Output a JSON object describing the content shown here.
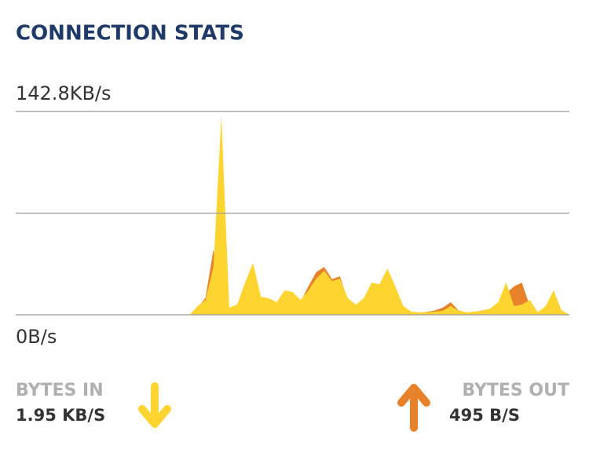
{
  "title": "CONNECTION STATS",
  "chart_data": {
    "type": "area",
    "ylim": [
      0,
      142.8
    ],
    "yticks": [
      {
        "value": 0,
        "label": "0B/s"
      },
      {
        "value": 71.4,
        "label": null
      },
      {
        "value": 142.8,
        "label": "142.8KB/s"
      }
    ],
    "grid": true,
    "series": [
      {
        "name": "BYTES IN",
        "color": "#fdd430",
        "values": [
          null,
          null,
          null,
          null,
          null,
          null,
          null,
          null,
          null,
          null,
          null,
          null,
          null,
          null,
          null,
          null,
          null,
          null,
          null,
          null,
          null,
          null,
          0,
          6.1,
          10.5,
          33.6,
          139.5,
          5.0,
          7.2,
          22.6,
          36.4,
          12.7,
          11.6,
          8.8,
          17.1,
          16.0,
          10.5,
          17.1,
          25.4,
          30.9,
          23.7,
          25.4,
          11.6,
          7.2,
          11.6,
          22.6,
          21.5,
          32.5,
          19.9,
          6.1,
          2.2,
          1.7,
          1.7,
          2.2,
          2.8,
          6.1,
          2.8,
          1.7,
          2.2,
          2.8,
          4.4,
          8.8,
          22.6,
          6.1,
          7.2,
          10.5,
          1.7,
          6.1,
          17.1,
          3.3,
          0
        ]
      },
      {
        "name": "BYTES OUT",
        "color": "#e8822a",
        "values": [
          null,
          null,
          null,
          null,
          null,
          null,
          null,
          null,
          null,
          null,
          null,
          null,
          null,
          null,
          null,
          null,
          null,
          null,
          null,
          null,
          null,
          null,
          0,
          5,
          12,
          45.8,
          20,
          4,
          6,
          10,
          12,
          8,
          9,
          7,
          12,
          10,
          9,
          20,
          30,
          33.6,
          25,
          27,
          10,
          6,
          10,
          18,
          16,
          24,
          15,
          6,
          2,
          1.5,
          2,
          3,
          5,
          8.8,
          3,
          1.5,
          2,
          3,
          4,
          8,
          15,
          19.9,
          22.6,
          6,
          2,
          4,
          8,
          3,
          0
        ]
      }
    ]
  },
  "readouts": [
    "1.95 KB/S",
    "495 B/S"
  ]
}
